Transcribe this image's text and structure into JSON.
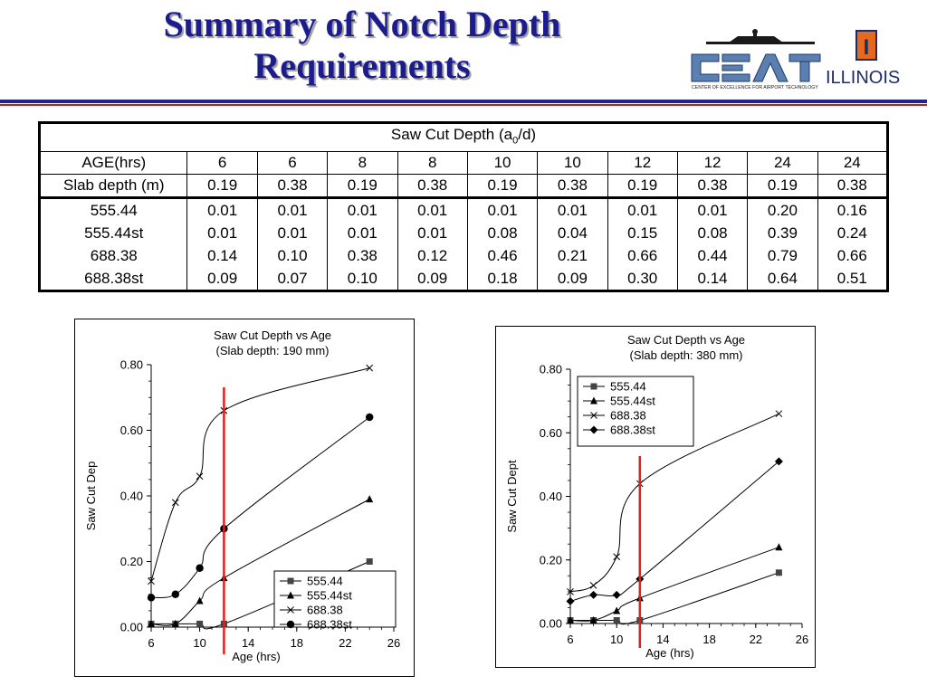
{
  "title": {
    "line1": "Summary of Notch Depth",
    "line2": "Requirements"
  },
  "logo": {
    "cea_text": "CEAT",
    "caption": "CENTER OF EXCELLENCE FOR AIRPORT TECHNOLOGY",
    "illinois": "ILLINOIS",
    "block_i": "I"
  },
  "table": {
    "header_prefix": "Saw Cut Depth (a",
    "header_sub": "0",
    "header_suffix": "/d)",
    "age_label": "AGE(hrs)",
    "ages": [
      "6",
      "6",
      "8",
      "8",
      "10",
      "10",
      "12",
      "12",
      "24",
      "24"
    ],
    "slab_label": "Slab depth (m)",
    "slabs": [
      "0.19",
      "0.38",
      "0.19",
      "0.38",
      "0.19",
      "0.38",
      "0.19",
      "0.38",
      "0.19",
      "0.38"
    ],
    "rows": [
      {
        "label": "555.44",
        "values": [
          "0.01",
          "0.01",
          "0.01",
          "0.01",
          "0.01",
          "0.01",
          "0.01",
          "0.01",
          "0.20",
          "0.16"
        ]
      },
      {
        "label": "555.44st",
        "values": [
          "0.01",
          "0.01",
          "0.01",
          "0.01",
          "0.08",
          "0.04",
          "0.15",
          "0.08",
          "0.39",
          "0.24"
        ]
      },
      {
        "label": "688.38",
        "values": [
          "0.14",
          "0.10",
          "0.38",
          "0.12",
          "0.46",
          "0.21",
          "0.66",
          "0.44",
          "0.79",
          "0.66"
        ]
      },
      {
        "label": "688.38st",
        "values": [
          "0.09",
          "0.07",
          "0.10",
          "0.09",
          "0.18",
          "0.09",
          "0.30",
          "0.14",
          "0.64",
          "0.51"
        ]
      }
    ]
  },
  "colors": {
    "title": "#1c1c8c",
    "marker_line": "#e02020",
    "series": "#000000"
  },
  "chart_data": [
    {
      "type": "line",
      "title": "Saw Cut Depth vs Age",
      "subtitle": "(Slab depth: 190 mm)",
      "xlabel": "Age (hrs)",
      "ylabel": "Saw Cut Dep",
      "xlim": [
        6,
        26
      ],
      "ylim": [
        0,
        0.8
      ],
      "xticks": [
        "6",
        "10",
        "14",
        "18",
        "22",
        "26"
      ],
      "yticks": [
        "0.00",
        "0.20",
        "0.40",
        "0.60",
        "0.80"
      ],
      "vline_x": 12,
      "legend_position": "bottom-right",
      "x": [
        6,
        8,
        10,
        12,
        24
      ],
      "series": [
        {
          "name": "555.44",
          "marker": "square",
          "values": [
            0.01,
            0.01,
            0.01,
            0.01,
            0.2
          ]
        },
        {
          "name": "555.44st",
          "marker": "triangle",
          "values": [
            0.01,
            0.01,
            0.08,
            0.15,
            0.39
          ]
        },
        {
          "name": "688.38",
          "marker": "x",
          "values": [
            0.14,
            0.38,
            0.46,
            0.66,
            0.79
          ]
        },
        {
          "name": "688.38st",
          "marker": "circle",
          "values": [
            0.09,
            0.1,
            0.18,
            0.3,
            0.64
          ]
        }
      ]
    },
    {
      "type": "line",
      "title": "Saw Cut Depth vs Age",
      "subtitle": "(Slab depth: 380 mm)",
      "xlabel": "Age (hrs)",
      "ylabel": "Saw Cut Dept",
      "xlim": [
        6,
        26
      ],
      "ylim": [
        0,
        0.8
      ],
      "xticks": [
        "6",
        "10",
        "14",
        "18",
        "22",
        "26"
      ],
      "yticks": [
        "0.00",
        "0.20",
        "0.40",
        "0.60",
        "0.80"
      ],
      "vline_x": 12,
      "legend_position": "top-left",
      "x": [
        6,
        8,
        10,
        12,
        24
      ],
      "series": [
        {
          "name": "555.44",
          "marker": "square",
          "values": [
            0.01,
            0.01,
            0.01,
            0.01,
            0.16
          ]
        },
        {
          "name": "555.44st",
          "marker": "triangle",
          "values": [
            0.01,
            0.01,
            0.04,
            0.08,
            0.24
          ]
        },
        {
          "name": "688.38",
          "marker": "x",
          "values": [
            0.1,
            0.12,
            0.21,
            0.44,
            0.66
          ]
        },
        {
          "name": "688.38st",
          "marker": "diamond",
          "values": [
            0.07,
            0.09,
            0.09,
            0.14,
            0.51
          ]
        }
      ]
    }
  ]
}
